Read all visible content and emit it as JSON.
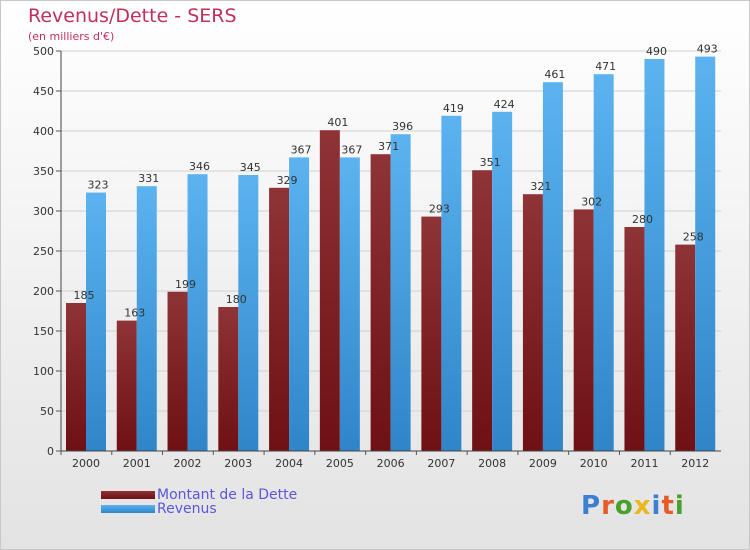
{
  "chart_data": {
    "type": "bar",
    "title": "Revenus/Dette - SERS",
    "subtitle": "(en milliers d'€)",
    "categories": [
      "2000",
      "2001",
      "2002",
      "2003",
      "2004",
      "2005",
      "2006",
      "2007",
      "2008",
      "2009",
      "2010",
      "2011",
      "2012"
    ],
    "series": [
      {
        "name": "Montant de la Dette",
        "values": [
          185,
          163,
          199,
          180,
          329,
          401,
          371,
          293,
          351,
          321,
          302,
          280,
          258
        ],
        "color": "#6e1014"
      },
      {
        "name": "Revenus",
        "values": [
          323,
          331,
          346,
          345,
          367,
          367,
          396,
          419,
          424,
          461,
          471,
          490,
          493
        ],
        "color": "#4ba3e6"
      }
    ],
    "ylim": [
      0,
      500
    ],
    "yticks": [
      0,
      50,
      100,
      150,
      200,
      250,
      300,
      350,
      400,
      450,
      500
    ],
    "grid": true,
    "legend": "bottom-left"
  },
  "logo": {
    "letters": [
      "P",
      "r",
      "o",
      "x",
      "i",
      "t",
      "i"
    ],
    "colors": [
      "#3d7fd0",
      "#e85a27",
      "#4aa02c",
      "#e8b81d",
      "#3d7fd0",
      "#e85a27",
      "#4aa02c"
    ]
  }
}
